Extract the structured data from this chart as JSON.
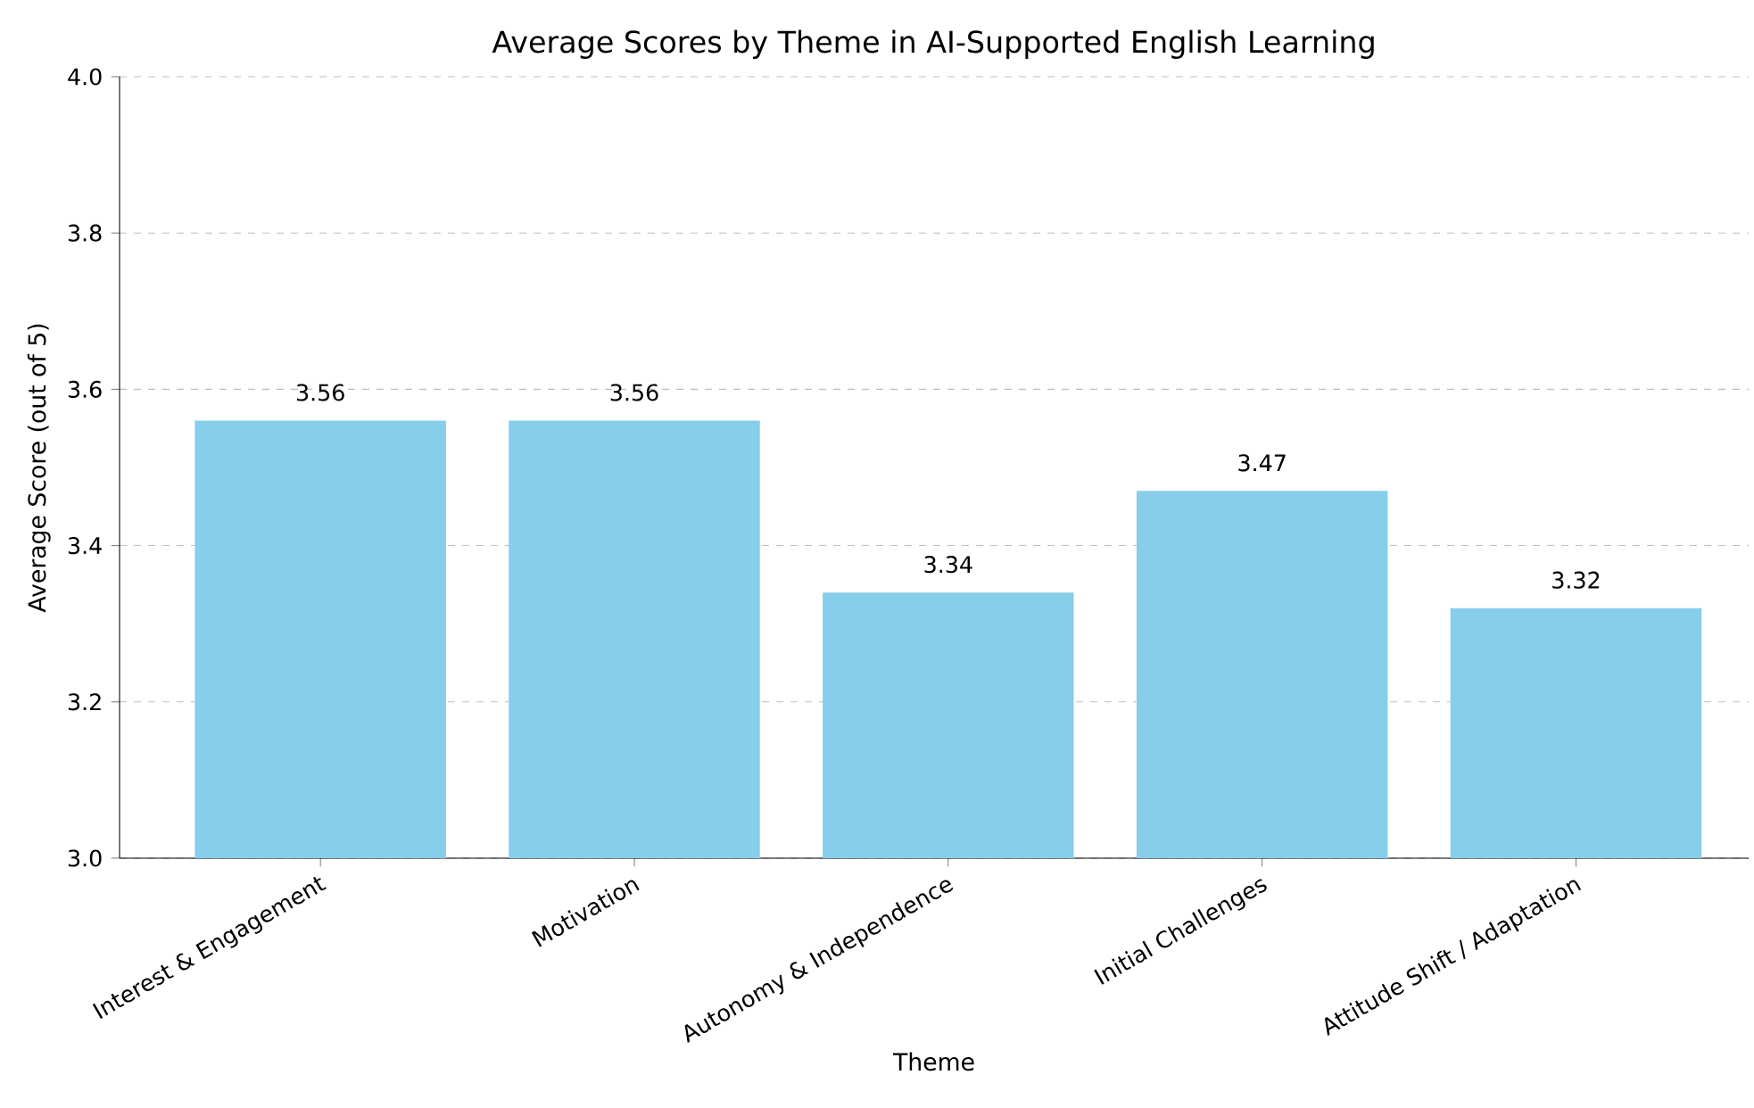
{
  "chart_data": {
    "type": "bar",
    "title": "Average Scores by Theme in AI-Supported English Learning",
    "xlabel": "Theme",
    "ylabel": "Average Score (out of 5)",
    "categories": [
      "Interest & Engagement",
      "Motivation",
      "Autonomy & Independence",
      "Initial Challenges",
      "Attitude Shift / Adaptation"
    ],
    "values": [
      3.56,
      3.56,
      3.34,
      3.47,
      3.32
    ],
    "color": "#87ceeb",
    "ylim": [
      3.0,
      4.0
    ],
    "yticks": [
      {
        "value": 3.0,
        "label": "3.0"
      },
      {
        "value": 3.2,
        "label": "3.2"
      },
      {
        "value": 3.4,
        "label": "3.4"
      },
      {
        "value": 3.6,
        "label": "3.6"
      },
      {
        "value": 3.8,
        "label": "3.8"
      },
      {
        "value": 4.0,
        "label": "4.0"
      }
    ],
    "grid": "y",
    "data_labels": true
  }
}
